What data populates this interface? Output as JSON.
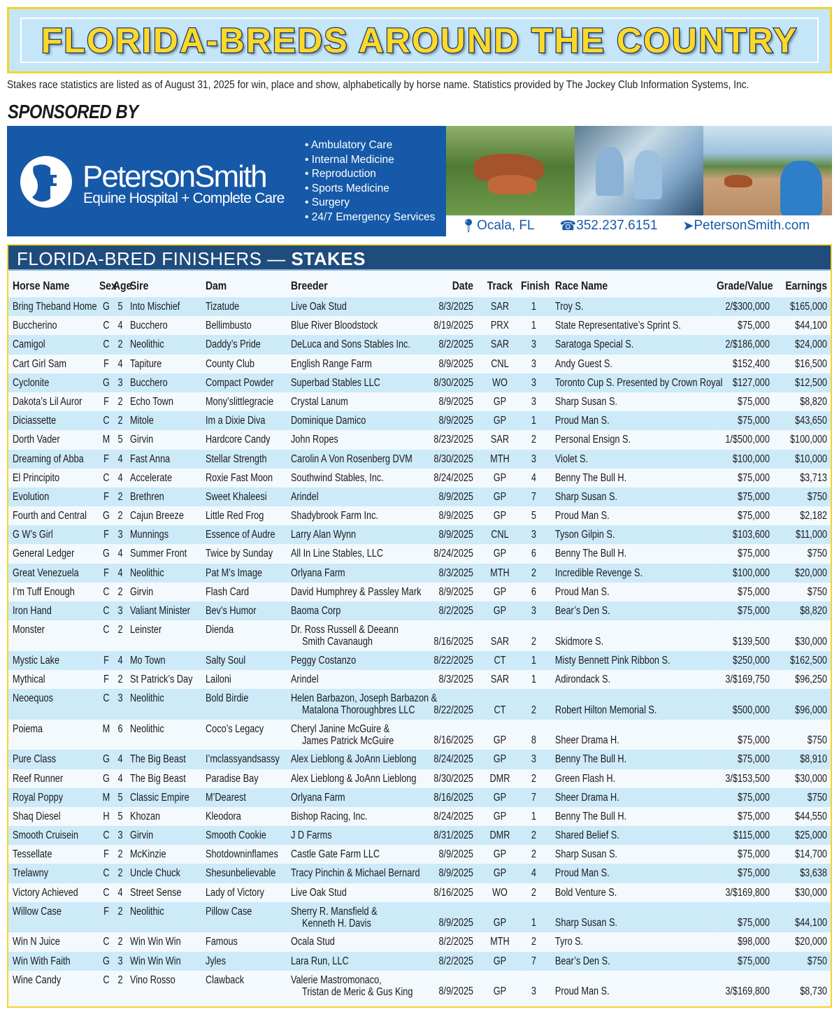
{
  "title": "FLORIDA-BREDS AROUND THE COUNTRY",
  "subtitle": "Stakes race statistics are listed as of August 31, 2025 for win, place and show, alphabetically by horse name. Statistics provided by The Jockey Club Information Systems, Inc.",
  "sponsored_by": "SPONSORED BY",
  "ad": {
    "brand": "PetersonSmith",
    "brand_sub": "Equine Hospital + Complete Care",
    "services": [
      "Ambulatory Care",
      "Internal Medicine",
      "Reproduction",
      "Sports Medicine",
      "Surgery",
      "24/7 Emergency Services"
    ],
    "location": "Ocala, FL",
    "phone": "352.237.6151",
    "website": "PetersonSmith.com",
    "brand_color": "#1659a8"
  },
  "table": {
    "heading_main": "FLORIDA-BRED FINISHERS — ",
    "heading_bold": "STAKES",
    "columns": [
      "Horse Name",
      "Sex",
      "Age",
      "Sire",
      "Dam",
      "Breeder",
      "Date",
      "Track",
      "Finish",
      "Race Name",
      "Grade/Value",
      "Earnings"
    ],
    "rows": [
      {
        "name": "Bring Theband Home",
        "sex": "G",
        "age": "5",
        "sire": "Into Mischief",
        "dam": "Tizatude",
        "breeder": [
          "Live Oak Stud"
        ],
        "date": "8/3/2025",
        "track": "SAR",
        "finish": "1",
        "race": "Troy S.",
        "grade": "2/$300,000",
        "earnings": "$165,000"
      },
      {
        "name": "Buccherino",
        "sex": "C",
        "age": "4",
        "sire": "Bucchero",
        "dam": "Bellimbusto",
        "breeder": [
          "Blue River Bloodstock"
        ],
        "date": "8/19/2025",
        "track": "PRX",
        "finish": "1",
        "race": "State Representative’s Sprint S.",
        "grade": "$75,000",
        "earnings": "$44,100"
      },
      {
        "name": "Camigol",
        "sex": "C",
        "age": "2",
        "sire": "Neolithic",
        "dam": "Daddy’s Pride",
        "breeder": [
          "DeLuca and Sons Stables Inc."
        ],
        "date": "8/2/2025",
        "track": "SAR",
        "finish": "3",
        "race": "Saratoga Special S.",
        "grade": "2/$186,000",
        "earnings": "$24,000"
      },
      {
        "name": "Cart Girl Sam",
        "sex": "F",
        "age": "4",
        "sire": "Tapiture",
        "dam": "County Club",
        "breeder": [
          "English Range Farm"
        ],
        "date": "8/9/2025",
        "track": "CNL",
        "finish": "3",
        "race": "Andy Guest S.",
        "grade": "$152,400",
        "earnings": "$16,500"
      },
      {
        "name": "Cyclonite",
        "sex": "G",
        "age": "3",
        "sire": "Bucchero",
        "dam": "Compact Powder",
        "breeder": [
          "Superbad Stables LLC"
        ],
        "date": "8/30/2025",
        "track": "WO",
        "finish": "3",
        "race": "Toronto Cup S. Presented by Crown Royal",
        "grade": "$127,000",
        "earnings": "$12,500"
      },
      {
        "name": "Dakota’s Lil Auror",
        "sex": "F",
        "age": "2",
        "sire": "Echo Town",
        "dam": "Mony’slittlegracie",
        "breeder": [
          "Crystal Lanum"
        ],
        "date": "8/9/2025",
        "track": "GP",
        "finish": "3",
        "race": "Sharp Susan S.",
        "grade": "$75,000",
        "earnings": "$8,820"
      },
      {
        "name": "Diciassette",
        "sex": "C",
        "age": "2",
        "sire": "Mitole",
        "dam": "Im a Dixie Diva",
        "breeder": [
          "Dominique Damico"
        ],
        "date": "8/9/2025",
        "track": "GP",
        "finish": "1",
        "race": "Proud Man S.",
        "grade": "$75,000",
        "earnings": "$43,650"
      },
      {
        "name": "Dorth Vader",
        "sex": "M",
        "age": "5",
        "sire": "Girvin",
        "dam": "Hardcore Candy",
        "breeder": [
          "John Ropes"
        ],
        "date": "8/23/2025",
        "track": "SAR",
        "finish": "2",
        "race": "Personal Ensign S.",
        "grade": "1/$500,000",
        "earnings": "$100,000"
      },
      {
        "name": "Dreaming of Abba",
        "sex": "F",
        "age": "4",
        "sire": "Fast Anna",
        "dam": "Stellar Strength",
        "breeder": [
          "Carolin A Von Rosenberg DVM"
        ],
        "date": "8/30/2025",
        "track": "MTH",
        "finish": "3",
        "race": "Violet S.",
        "grade": "$100,000",
        "earnings": "$10,000"
      },
      {
        "name": "El Principito",
        "sex": "C",
        "age": "4",
        "sire": "Accelerate",
        "dam": "Roxie Fast Moon",
        "breeder": [
          "Southwind Stables, Inc."
        ],
        "date": "8/24/2025",
        "track": "GP",
        "finish": "4",
        "race": "Benny The Bull H.",
        "grade": "$75,000",
        "earnings": "$3,713"
      },
      {
        "name": "Evolution",
        "sex": "F",
        "age": "2",
        "sire": "Brethren",
        "dam": "Sweet Khaleesi",
        "breeder": [
          "Arindel"
        ],
        "date": "8/9/2025",
        "track": "GP",
        "finish": "7",
        "race": "Sharp Susan S.",
        "grade": "$75,000",
        "earnings": "$750"
      },
      {
        "name": "Fourth and Central",
        "sex": "G",
        "age": "2",
        "sire": "Cajun Breeze",
        "dam": "Little Red Frog",
        "breeder": [
          "Shadybrook Farm Inc."
        ],
        "date": "8/9/2025",
        "track": "GP",
        "finish": "5",
        "race": "Proud Man S.",
        "grade": "$75,000",
        "earnings": "$2,182"
      },
      {
        "name": "G W’s Girl",
        "sex": "F",
        "age": "3",
        "sire": "Munnings",
        "dam": "Essence of Audre",
        "breeder": [
          "Larry Alan Wynn"
        ],
        "date": "8/9/2025",
        "track": "CNL",
        "finish": "3",
        "race": "Tyson Gilpin S.",
        "grade": "$103,600",
        "earnings": "$11,000"
      },
      {
        "name": "General Ledger",
        "sex": "G",
        "age": "4",
        "sire": "Summer Front",
        "dam": "Twice by Sunday",
        "breeder": [
          "All In Line Stables, LLC"
        ],
        "date": "8/24/2025",
        "track": "GP",
        "finish": "6",
        "race": "Benny The Bull H.",
        "grade": "$75,000",
        "earnings": "$750"
      },
      {
        "name": "Great Venezuela",
        "sex": "F",
        "age": "4",
        "sire": "Neolithic",
        "dam": "Pat M’s Image",
        "breeder": [
          "Orlyana Farm"
        ],
        "date": "8/3/2025",
        "track": "MTH",
        "finish": "2",
        "race": "Incredible Revenge S.",
        "grade": "$100,000",
        "earnings": "$20,000"
      },
      {
        "name": "I’m Tuff Enough",
        "sex": "C",
        "age": "2",
        "sire": "Girvin",
        "dam": "Flash Card",
        "breeder": [
          "David Humphrey & Passley Mark"
        ],
        "date": "8/9/2025",
        "track": "GP",
        "finish": "6",
        "race": "Proud Man S.",
        "grade": "$75,000",
        "earnings": "$750"
      },
      {
        "name": "Iron Hand",
        "sex": "C",
        "age": "3",
        "sire": "Valiant Minister",
        "dam": "Bev’s Humor",
        "breeder": [
          "Baoma Corp"
        ],
        "date": "8/2/2025",
        "track": "GP",
        "finish": "3",
        "race": "Bear’s Den S.",
        "grade": "$75,000",
        "earnings": "$8,820"
      },
      {
        "name": "Monster",
        "sex": "C",
        "age": "2",
        "sire": "Leinster",
        "dam": "Dienda",
        "breeder": [
          "Dr. Ross Russell & Deeann",
          "Smith Cavanaugh"
        ],
        "date": "8/16/2025",
        "track": "SAR",
        "finish": "2",
        "race": "Skidmore S.",
        "grade": "$139,500",
        "earnings": "$30,000"
      },
      {
        "name": "Mystic Lake",
        "sex": "F",
        "age": "4",
        "sire": "Mo Town",
        "dam": "Salty Soul",
        "breeder": [
          "Peggy Costanzo"
        ],
        "date": "8/22/2025",
        "track": "CT",
        "finish": "1",
        "race": "Misty Bennett Pink Ribbon S.",
        "grade": "$250,000",
        "earnings": "$162,500"
      },
      {
        "name": "Mythical",
        "sex": "F",
        "age": "2",
        "sire": "St Patrick’s Day",
        "dam": "Lailoni",
        "breeder": [
          "Arindel"
        ],
        "date": "8/3/2025",
        "track": "SAR",
        "finish": "1",
        "race": "Adirondack S.",
        "grade": "3/$169,750",
        "earnings": "$96,250"
      },
      {
        "name": "Neoequos",
        "sex": "C",
        "age": "3",
        "sire": "Neolithic",
        "dam": "Bold Birdie",
        "breeder": [
          "Helen Barbazon, Joseph Barbazon &",
          "Matalona Thoroughbres LLC"
        ],
        "date": "8/22/2025",
        "track": "CT",
        "finish": "2",
        "race": "Robert Hilton Memorial S.",
        "grade": "$500,000",
        "earnings": "$96,000"
      },
      {
        "name": "Poiema",
        "sex": "M",
        "age": "6",
        "sire": "Neolithic",
        "dam": "Coco’s Legacy",
        "breeder": [
          "Cheryl Janine McGuire &",
          "James Patrick McGuire"
        ],
        "date": "8/16/2025",
        "track": "GP",
        "finish": "8",
        "race": "Sheer Drama H.",
        "grade": "$75,000",
        "earnings": "$750"
      },
      {
        "name": "Pure Class",
        "sex": "G",
        "age": "4",
        "sire": "The Big Beast",
        "dam": "I’mclassyandsassy",
        "breeder": [
          "Alex Lieblong & JoAnn Lieblong"
        ],
        "date": "8/24/2025",
        "track": "GP",
        "finish": "3",
        "race": "Benny The Bull H.",
        "grade": "$75,000",
        "earnings": "$8,910"
      },
      {
        "name": "Reef Runner",
        "sex": "G",
        "age": "4",
        "sire": "The Big Beast",
        "dam": "Paradise Bay",
        "breeder": [
          "Alex Lieblong & JoAnn Lieblong"
        ],
        "date": "8/30/2025",
        "track": "DMR",
        "finish": "2",
        "race": "Green Flash H.",
        "grade": "3/$153,500",
        "earnings": "$30,000"
      },
      {
        "name": "Royal Poppy",
        "sex": "M",
        "age": "5",
        "sire": "Classic Empire",
        "dam": "M’Dearest",
        "breeder": [
          "Orlyana Farm"
        ],
        "date": "8/16/2025",
        "track": "GP",
        "finish": "7",
        "race": "Sheer Drama H.",
        "grade": "$75,000",
        "earnings": "$750"
      },
      {
        "name": "Shaq Diesel",
        "sex": "H",
        "age": "5",
        "sire": "Khozan",
        "dam": "Kleodora",
        "breeder": [
          "Bishop Racing, Inc."
        ],
        "date": "8/24/2025",
        "track": "GP",
        "finish": "1",
        "race": "Benny The Bull H.",
        "grade": "$75,000",
        "earnings": "$44,550"
      },
      {
        "name": "Smooth Cruisein",
        "sex": "C",
        "age": "3",
        "sire": "Girvin",
        "dam": "Smooth Cookie",
        "breeder": [
          "J D Farms"
        ],
        "date": "8/31/2025",
        "track": "DMR",
        "finish": "2",
        "race": "Shared Belief S.",
        "grade": "$115,000",
        "earnings": "$25,000"
      },
      {
        "name": "Tessellate",
        "sex": "F",
        "age": "2",
        "sire": "McKinzie",
        "dam": "Shotdowninflames",
        "breeder": [
          "Castle Gate Farm LLC"
        ],
        "date": "8/9/2025",
        "track": "GP",
        "finish": "2",
        "race": "Sharp Susan S.",
        "grade": "$75,000",
        "earnings": "$14,700"
      },
      {
        "name": "Trelawny",
        "sex": "C",
        "age": "2",
        "sire": "Uncle Chuck",
        "dam": "Shesunbelievable",
        "breeder": [
          "Tracy Pinchin & Michael Bernard"
        ],
        "date": "8/9/2025",
        "track": "GP",
        "finish": "4",
        "race": "Proud Man S.",
        "grade": "$75,000",
        "earnings": "$3,638"
      },
      {
        "name": "Victory Achieved",
        "sex": "C",
        "age": "4",
        "sire": "Street Sense",
        "dam": "Lady of Victory",
        "breeder": [
          "Live Oak Stud"
        ],
        "date": "8/16/2025",
        "track": "WO",
        "finish": "2",
        "race": "Bold Venture S.",
        "grade": "3/$169,800",
        "earnings": "$30,000"
      },
      {
        "name": "Willow Case",
        "sex": "F",
        "age": "2",
        "sire": "Neolithic",
        "dam": "Pillow Case",
        "breeder": [
          "Sherry R. Mansfield &",
          "Kenneth H. Davis"
        ],
        "date": "8/9/2025",
        "track": "GP",
        "finish": "1",
        "race": "Sharp Susan S.",
        "grade": "$75,000",
        "earnings": "$44,100"
      },
      {
        "name": "Win N Juice",
        "sex": "C",
        "age": "2",
        "sire": "Win Win Win",
        "dam": "Famous",
        "breeder": [
          "Ocala Stud"
        ],
        "date": "8/2/2025",
        "track": "MTH",
        "finish": "2",
        "race": "Tyro S.",
        "grade": "$98,000",
        "earnings": "$20,000"
      },
      {
        "name": "Win With Faith",
        "sex": "G",
        "age": "3",
        "sire": "Win Win Win",
        "dam": "Jyles",
        "breeder": [
          "Lara Run, LLC"
        ],
        "date": "8/2/2025",
        "track": "GP",
        "finish": "7",
        "race": "Bear’s Den S.",
        "grade": "$75,000",
        "earnings": "$750"
      },
      {
        "name": "Wine Candy",
        "sex": "C",
        "age": "2",
        "sire": "Vino Rosso",
        "dam": "Clawback",
        "breeder": [
          "Valerie Mastromonaco,",
          "Tristan de Meric & Gus King"
        ],
        "date": "8/9/2025",
        "track": "GP",
        "finish": "3",
        "race": "Proud Man S.",
        "grade": "3/$169,800",
        "earnings": "$8,730"
      }
    ]
  }
}
